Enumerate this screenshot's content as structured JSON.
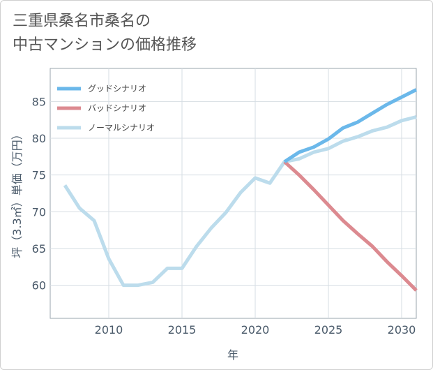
{
  "title_lines": [
    "三重県桑名市桑名の",
    "中古マンションの価格推移"
  ],
  "chart_data": {
    "type": "line",
    "xlabel": "年",
    "ylabel": "坪（3.3㎡）単価（万円）",
    "xlim": [
      2006,
      2031
    ],
    "ylim": [
      55.5,
      89.5
    ],
    "xticks": [
      2010,
      2015,
      2020,
      2025,
      2030
    ],
    "yticks": [
      60,
      65,
      70,
      75,
      80,
      85
    ],
    "grid": true,
    "legend_position": "top-left",
    "series": [
      {
        "name": "グッドシナリオ",
        "color": "#6bb8ea",
        "x": [
          2022,
          2023,
          2024,
          2025,
          2026,
          2027,
          2028,
          2029,
          2030,
          2031
        ],
        "y": [
          76.8,
          78.1,
          78.8,
          79.9,
          81.4,
          82.2,
          83.4,
          84.6,
          85.6,
          86.6
        ]
      },
      {
        "name": "バッドシナリオ",
        "color": "#dc8a90",
        "x": [
          2022,
          2023,
          2024,
          2025,
          2026,
          2027,
          2028,
          2029,
          2030,
          2031
        ],
        "y": [
          76.8,
          75.0,
          73.0,
          70.9,
          68.8,
          67.0,
          65.3,
          63.2,
          61.3,
          59.3
        ]
      },
      {
        "name": "ノーマルシナリオ",
        "color": "#bcdcec",
        "x": [
          2007,
          2008,
          2009,
          2010,
          2011,
          2012,
          2013,
          2014,
          2015,
          2016,
          2017,
          2018,
          2019,
          2020,
          2021,
          2022,
          2023,
          2024,
          2025,
          2026,
          2027,
          2028,
          2029,
          2030,
          2031
        ],
        "y": [
          73.6,
          70.5,
          68.8,
          63.6,
          60.0,
          60.0,
          60.4,
          62.3,
          62.3,
          65.3,
          67.8,
          69.9,
          72.6,
          74.6,
          73.9,
          76.8,
          77.2,
          78.1,
          78.6,
          79.6,
          80.2,
          81.0,
          81.5,
          82.4,
          82.9
        ]
      }
    ]
  }
}
